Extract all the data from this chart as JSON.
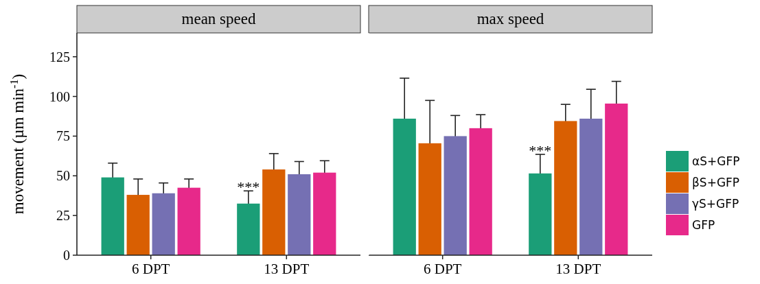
{
  "chart_data": [
    {
      "type": "bar",
      "title": "mean speed",
      "ylabel": "movement (µm min$^{-1}$)",
      "categories": [
        "6 DPT",
        "13 DPT"
      ],
      "ylim": [
        0,
        140
      ],
      "yticks": [
        0,
        25,
        50,
        75,
        100,
        125
      ],
      "series": [
        {
          "color": "#1b9e77",
          "values": [
            49,
            32.5
          ],
          "errors": [
            9,
            8
          ]
        },
        {
          "color": "#d95f02",
          "values": [
            38,
            54
          ],
          "errors": [
            10,
            10
          ]
        },
        {
          "color": "#7570b3",
          "values": [
            39,
            51
          ],
          "errors": [
            6.5,
            8
          ]
        },
        {
          "color": "#e7298a",
          "values": [
            42.5,
            52
          ],
          "errors": [
            5.5,
            7.5
          ]
        }
      ],
      "annotations": [
        {
          "text": "***",
          "x": "13 DPT",
          "y": 45
        }
      ]
    },
    {
      "type": "bar",
      "title": "max speed",
      "categories": [
        "6 DPT",
        "13 DPT"
      ],
      "ylim": [
        0,
        140
      ],
      "yticks": [
        0,
        25,
        50,
        75,
        100,
        125
      ],
      "tick_labels": "x",
      "legend": "right",
      "series": [
        {
          "name": "αS+GFP",
          "color": "#1b9e77",
          "values": [
            86,
            51.5
          ],
          "errors": [
            25.5,
            12
          ]
        },
        {
          "name": "βS+GFP",
          "color": "#d95f02",
          "values": [
            70.5,
            84.5
          ],
          "errors": [
            27,
            10.5
          ]
        },
        {
          "name": "γS+GFP",
          "color": "#7570b3",
          "values": [
            75,
            86
          ],
          "errors": [
            13,
            18.5
          ]
        },
        {
          "name": "GFP",
          "color": "#e7298a",
          "values": [
            80,
            95.5
          ],
          "errors": [
            8.5,
            14
          ]
        }
      ],
      "annotations": [
        {
          "text": "***",
          "x": "13 DPT",
          "y": 68
        }
      ]
    }
  ]
}
